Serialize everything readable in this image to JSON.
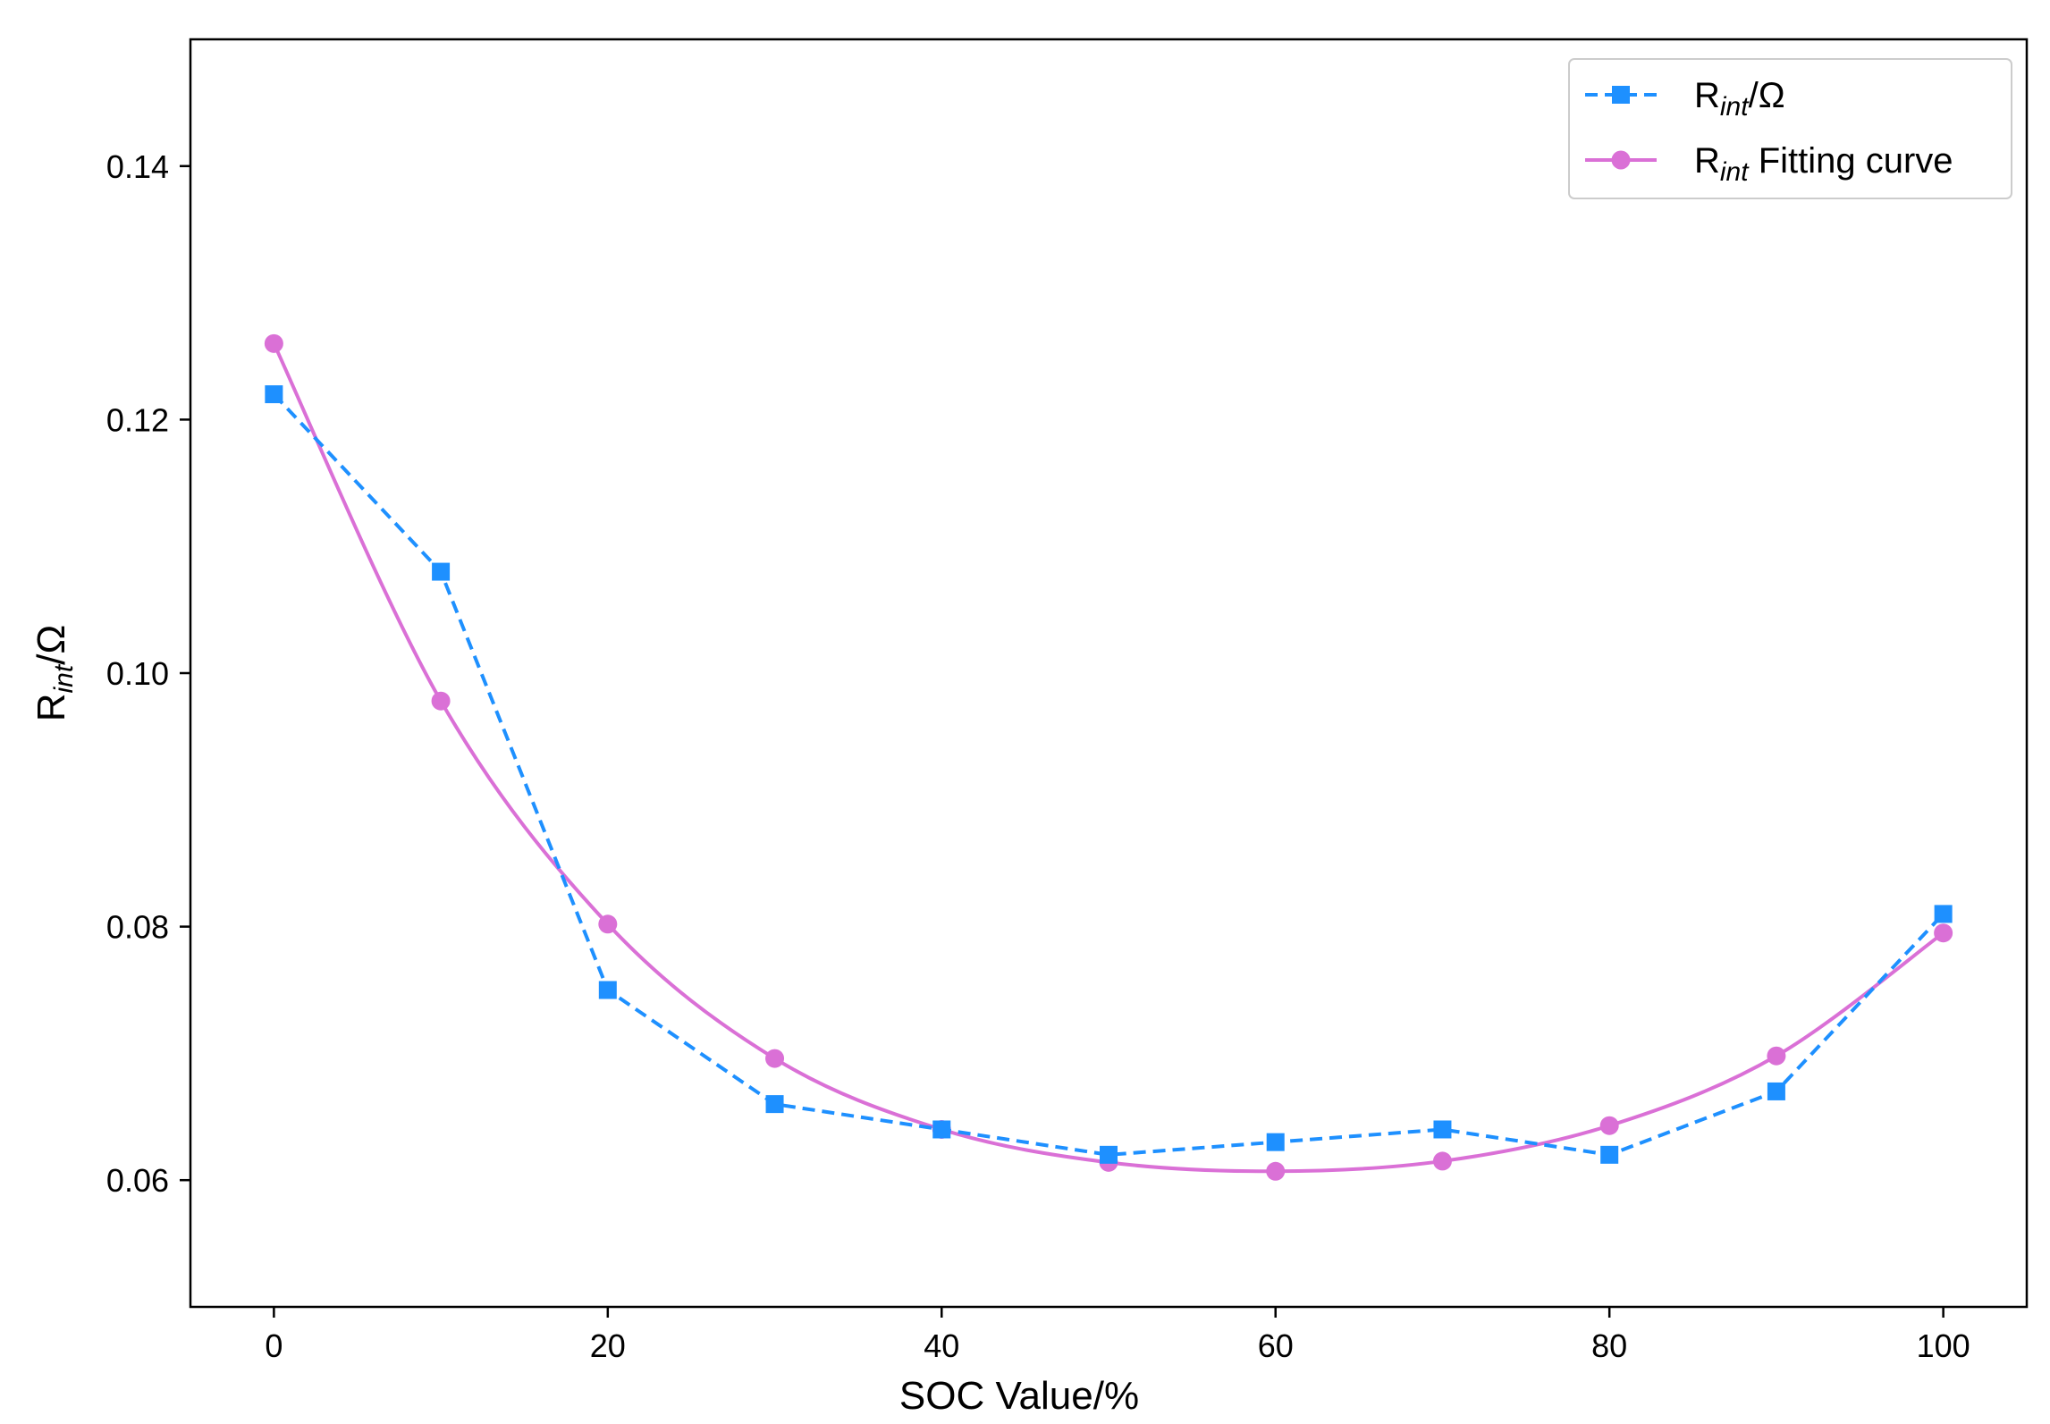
{
  "chart_data": {
    "type": "line",
    "title": "",
    "xlabel": "SOC Value/%",
    "ylabel": {
      "base": "R",
      "sub": "int",
      "tail": "/Ω"
    },
    "xlim": [
      -5,
      105
    ],
    "ylim": [
      0.05,
      0.15
    ],
    "xticks": [
      0,
      20,
      40,
      60,
      80,
      100
    ],
    "yticks": [
      0.06,
      0.08,
      0.1,
      0.12,
      0.14
    ],
    "ytick_labels": [
      "0.06",
      "0.08",
      "0.10",
      "0.12",
      "0.14"
    ],
    "grid": false,
    "legend_position": "top-right",
    "series": [
      {
        "name": "Rint/Ω",
        "legend": {
          "base": "R",
          "sub": "int",
          "tail": "/Ω"
        },
        "style": "dashed",
        "marker": "square",
        "color": "#1E90FF",
        "x": [
          0,
          10,
          20,
          30,
          40,
          50,
          60,
          70,
          80,
          90,
          100
        ],
        "values": [
          0.122,
          0.108,
          0.075,
          0.066,
          0.064,
          0.062,
          0.063,
          0.064,
          0.062,
          0.067,
          0.081
        ]
      },
      {
        "name": "Rint Fitting curve",
        "legend": {
          "base": "R",
          "sub": "int",
          "tail": " Fitting curve"
        },
        "style": "solid",
        "marker": "circle",
        "color": "#DA70D6",
        "x": [
          0,
          10,
          20,
          30,
          40,
          50,
          60,
          70,
          80,
          90,
          100
        ],
        "values": [
          0.126,
          0.0978,
          0.0802,
          0.0696,
          0.064,
          0.0614,
          0.0607,
          0.0615,
          0.0643,
          0.0698,
          0.0795
        ]
      }
    ]
  }
}
